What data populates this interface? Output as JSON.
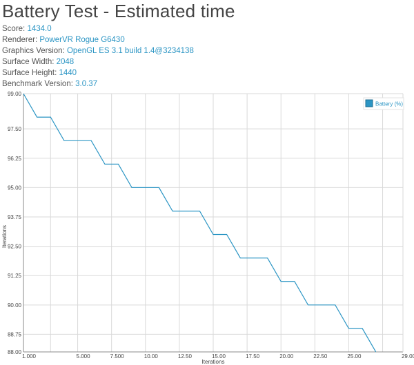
{
  "header": {
    "title": "Battery Test - Estimated time"
  },
  "info": [
    {
      "label": "Score:",
      "value": "1434.0"
    },
    {
      "label": "Renderer:",
      "value": "PowerVR Rogue G6430"
    },
    {
      "label": "Graphics Version:",
      "value": "OpenGL ES 3.1 build 1.4@3234138"
    },
    {
      "label": "Surface Width:",
      "value": "2048"
    },
    {
      "label": "Surface Height:",
      "value": "1440"
    },
    {
      "label": "Benchmark Version:",
      "value": "3.0.37"
    }
  ],
  "colors": {
    "series": "#2b95c4",
    "grid": "#d9d9d9",
    "axis": "#888888"
  },
  "chart_data": {
    "type": "line",
    "title": "",
    "xlabel": "Iterations",
    "ylabel": "Iterations",
    "xlim": [
      1,
      29
    ],
    "ylim": [
      88,
      99
    ],
    "x_ticks": [
      1,
      5,
      7.5,
      10,
      12.5,
      15,
      17.5,
      20,
      22.5,
      25,
      29
    ],
    "x_tick_labels": [
      "1.000",
      "5.000",
      "7.500",
      "10.00",
      "12.50",
      "15.00",
      "17.50",
      "20.00",
      "22.50",
      "25.00",
      "29.00"
    ],
    "y_ticks": [
      99,
      97.5,
      96.25,
      95,
      93.75,
      92.5,
      91.25,
      90,
      88.75,
      88
    ],
    "y_tick_labels": [
      "99.00",
      "97.50",
      "96.25",
      "95.00",
      "93.75",
      "92.50",
      "91.25",
      "90.00",
      "88.75",
      "88.00"
    ],
    "x_grid": [
      3,
      5,
      7.5,
      10,
      12.5,
      15,
      17.5,
      20,
      22.5,
      25,
      27.5
    ],
    "legend": "top-right",
    "series": [
      {
        "name": "Battery (%)",
        "x": [
          1,
          2,
          3,
          4,
          5,
          6,
          7,
          8,
          9,
          10,
          11,
          12,
          13,
          14,
          15,
          16,
          17,
          18,
          19,
          20,
          21,
          22,
          23,
          24,
          25,
          26,
          27
        ],
        "y": [
          99,
          98,
          98,
          97,
          97,
          97,
          96,
          96,
          95,
          95,
          95,
          94,
          94,
          94,
          93,
          93,
          92,
          92,
          92,
          91,
          91,
          90,
          90,
          90,
          89,
          89,
          88
        ]
      }
    ]
  }
}
